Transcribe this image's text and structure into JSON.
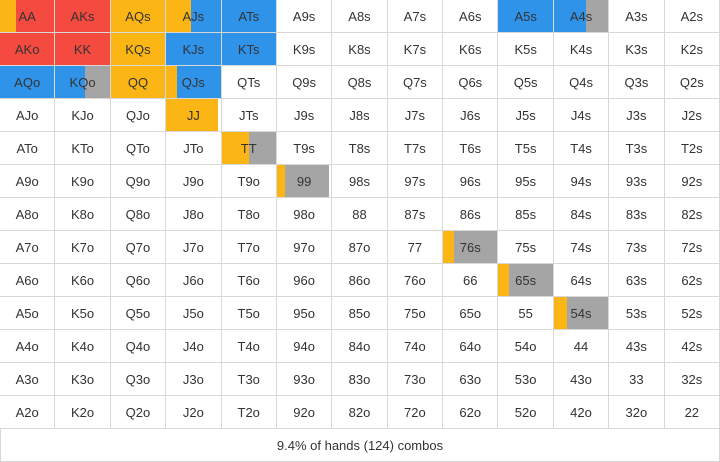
{
  "grid": {
    "rows": [
      [
        {
          "label": "AA",
          "segments": [
            {
              "color": "#fbb615",
              "share": 0.3
            },
            {
              "color": "#f44a3f",
              "share": 0.7
            }
          ]
        },
        {
          "label": "AKs",
          "segments": [
            {
              "color": "#f44a3f",
              "share": 1
            }
          ]
        },
        {
          "label": "AQs",
          "segments": [
            {
              "color": "#fbb615",
              "share": 1
            }
          ]
        },
        {
          "label": "AJs",
          "segments": [
            {
              "color": "#fbb615",
              "share": 0.45
            },
            {
              "color": "#2f93ea",
              "share": 0.55
            }
          ]
        },
        {
          "label": "ATs",
          "segments": [
            {
              "color": "#2f93ea",
              "share": 1
            }
          ]
        },
        {
          "label": "A9s"
        },
        {
          "label": "A8s"
        },
        {
          "label": "A7s"
        },
        {
          "label": "A6s"
        },
        {
          "label": "A5s",
          "segments": [
            {
              "color": "#2f93ea",
              "share": 1
            }
          ]
        },
        {
          "label": "A4s",
          "segments": [
            {
              "color": "#2f93ea",
              "share": 0.6
            },
            {
              "color": "#a5a5a5",
              "share": 0.4
            }
          ]
        },
        {
          "label": "A3s"
        },
        {
          "label": "A2s"
        }
      ],
      [
        {
          "label": "AKo",
          "segments": [
            {
              "color": "#f44a3f",
              "share": 1
            }
          ]
        },
        {
          "label": "KK",
          "segments": [
            {
              "color": "#f44a3f",
              "share": 1
            }
          ]
        },
        {
          "label": "KQs",
          "segments": [
            {
              "color": "#fbb615",
              "share": 1
            }
          ]
        },
        {
          "label": "KJs",
          "segments": [
            {
              "color": "#2f93ea",
              "share": 1
            }
          ]
        },
        {
          "label": "KTs",
          "segments": [
            {
              "color": "#2f93ea",
              "share": 1
            }
          ]
        },
        {
          "label": "K9s"
        },
        {
          "label": "K8s"
        },
        {
          "label": "K7s"
        },
        {
          "label": "K6s"
        },
        {
          "label": "K5s"
        },
        {
          "label": "K4s"
        },
        {
          "label": "K3s"
        },
        {
          "label": "K2s"
        }
      ],
      [
        {
          "label": "AQo",
          "segments": [
            {
              "color": "#2f93ea",
              "share": 1
            }
          ]
        },
        {
          "label": "KQo",
          "segments": [
            {
              "color": "#2f93ea",
              "share": 0.55
            },
            {
              "color": "#a5a5a5",
              "share": 0.45
            }
          ]
        },
        {
          "label": "QQ",
          "segments": [
            {
              "color": "#fbb615",
              "share": 1
            }
          ]
        },
        {
          "label": "QJs",
          "segments": [
            {
              "color": "#fbb615",
              "share": 0.2
            },
            {
              "color": "#2f93ea",
              "share": 0.8
            }
          ]
        },
        {
          "label": "QTs"
        },
        {
          "label": "Q9s"
        },
        {
          "label": "Q8s"
        },
        {
          "label": "Q7s"
        },
        {
          "label": "Q6s"
        },
        {
          "label": "Q5s"
        },
        {
          "label": "Q4s"
        },
        {
          "label": "Q3s"
        },
        {
          "label": "Q2s"
        }
      ],
      [
        {
          "label": "AJo"
        },
        {
          "label": "KJo"
        },
        {
          "label": "QJo"
        },
        {
          "label": "JJ",
          "segments": [
            {
              "color": "#fbb615",
              "share": 0.95
            }
          ]
        },
        {
          "label": "JTs"
        },
        {
          "label": "J9s"
        },
        {
          "label": "J8s"
        },
        {
          "label": "J7s"
        },
        {
          "label": "J6s"
        },
        {
          "label": "J5s"
        },
        {
          "label": "J4s"
        },
        {
          "label": "J3s"
        },
        {
          "label": "J2s"
        }
      ],
      [
        {
          "label": "ATo"
        },
        {
          "label": "KTo"
        },
        {
          "label": "QTo"
        },
        {
          "label": "JTo"
        },
        {
          "label": "TT",
          "segments": [
            {
              "color": "#fbb615",
              "share": 0.5
            },
            {
              "color": "#a5a5a5",
              "share": 0.5
            }
          ]
        },
        {
          "label": "T9s"
        },
        {
          "label": "T8s"
        },
        {
          "label": "T7s"
        },
        {
          "label": "T6s"
        },
        {
          "label": "T5s"
        },
        {
          "label": "T4s"
        },
        {
          "label": "T3s"
        },
        {
          "label": "T2s"
        }
      ],
      [
        {
          "label": "A9o"
        },
        {
          "label": "K9o"
        },
        {
          "label": "Q9o"
        },
        {
          "label": "J9o"
        },
        {
          "label": "T9o"
        },
        {
          "label": "99",
          "segments": [
            {
              "color": "#fbb615",
              "share": 0.15
            },
            {
              "color": "#a5a5a5",
              "share": 0.8
            }
          ]
        },
        {
          "label": "98s"
        },
        {
          "label": "97s"
        },
        {
          "label": "96s"
        },
        {
          "label": "95s"
        },
        {
          "label": "94s"
        },
        {
          "label": "93s"
        },
        {
          "label": "92s"
        }
      ],
      [
        {
          "label": "A8o"
        },
        {
          "label": "K8o"
        },
        {
          "label": "Q8o"
        },
        {
          "label": "J8o"
        },
        {
          "label": "T8o"
        },
        {
          "label": "98o"
        },
        {
          "label": "88"
        },
        {
          "label": "87s"
        },
        {
          "label": "86s"
        },
        {
          "label": "85s"
        },
        {
          "label": "84s"
        },
        {
          "label": "83s"
        },
        {
          "label": "82s"
        }
      ],
      [
        {
          "label": "A7o"
        },
        {
          "label": "K7o"
        },
        {
          "label": "Q7o"
        },
        {
          "label": "J7o"
        },
        {
          "label": "T7o"
        },
        {
          "label": "97o"
        },
        {
          "label": "87o"
        },
        {
          "label": "77"
        },
        {
          "label": "76s",
          "segments": [
            {
              "color": "#fbb615",
              "share": 0.2
            },
            {
              "color": "#a5a5a5",
              "share": 0.8
            }
          ]
        },
        {
          "label": "75s"
        },
        {
          "label": "74s"
        },
        {
          "label": "73s"
        },
        {
          "label": "72s"
        }
      ],
      [
        {
          "label": "A6o"
        },
        {
          "label": "K6o"
        },
        {
          "label": "Q6o"
        },
        {
          "label": "J6o"
        },
        {
          "label": "T6o"
        },
        {
          "label": "96o"
        },
        {
          "label": "86o"
        },
        {
          "label": "76o"
        },
        {
          "label": "66"
        },
        {
          "label": "65s",
          "segments": [
            {
              "color": "#fbb615",
              "share": 0.2
            },
            {
              "color": "#a5a5a5",
              "share": 0.8
            }
          ]
        },
        {
          "label": "64s"
        },
        {
          "label": "63s"
        },
        {
          "label": "62s"
        }
      ],
      [
        {
          "label": "A5o"
        },
        {
          "label": "K5o"
        },
        {
          "label": "Q5o"
        },
        {
          "label": "J5o"
        },
        {
          "label": "T5o"
        },
        {
          "label": "95o"
        },
        {
          "label": "85o"
        },
        {
          "label": "75o"
        },
        {
          "label": "65o"
        },
        {
          "label": "55"
        },
        {
          "label": "54s",
          "segments": [
            {
              "color": "#fbb615",
              "share": 0.25
            },
            {
              "color": "#a5a5a5",
              "share": 0.75
            }
          ]
        },
        {
          "label": "53s"
        },
        {
          "label": "52s"
        }
      ],
      [
        {
          "label": "A4o"
        },
        {
          "label": "K4o"
        },
        {
          "label": "Q4o"
        },
        {
          "label": "J4o"
        },
        {
          "label": "T4o"
        },
        {
          "label": "94o"
        },
        {
          "label": "84o"
        },
        {
          "label": "74o"
        },
        {
          "label": "64o"
        },
        {
          "label": "54o"
        },
        {
          "label": "44"
        },
        {
          "label": "43s"
        },
        {
          "label": "42s"
        }
      ],
      [
        {
          "label": "A3o"
        },
        {
          "label": "K3o"
        },
        {
          "label": "Q3o"
        },
        {
          "label": "J3o"
        },
        {
          "label": "T3o"
        },
        {
          "label": "93o"
        },
        {
          "label": "83o"
        },
        {
          "label": "73o"
        },
        {
          "label": "63o"
        },
        {
          "label": "53o"
        },
        {
          "label": "43o"
        },
        {
          "label": "33"
        },
        {
          "label": "32s"
        }
      ],
      [
        {
          "label": "A2o"
        },
        {
          "label": "K2o"
        },
        {
          "label": "Q2o"
        },
        {
          "label": "J2o"
        },
        {
          "label": "T2o"
        },
        {
          "label": "92o"
        },
        {
          "label": "82o"
        },
        {
          "label": "72o"
        },
        {
          "label": "62o"
        },
        {
          "label": "52o"
        },
        {
          "label": "42o"
        },
        {
          "label": "32o"
        },
        {
          "label": "22"
        }
      ]
    ]
  },
  "footer": "9.4% of hands (124) combos"
}
